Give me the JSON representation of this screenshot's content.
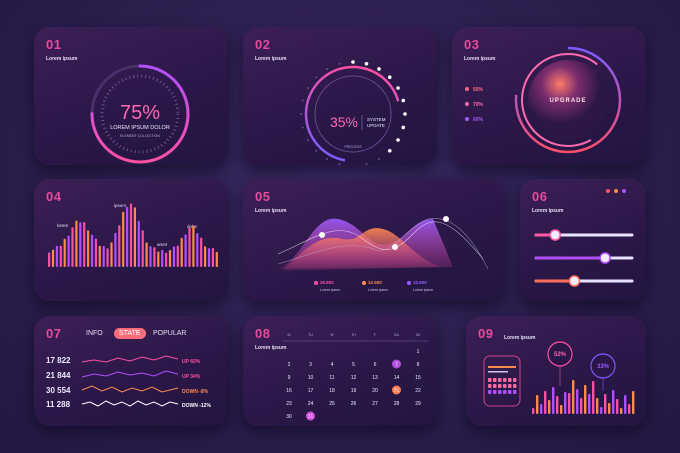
{
  "panels": [
    {
      "num": "01",
      "label": "Lorem ipsum"
    },
    {
      "num": "02",
      "label": "Lorem ipsum"
    },
    {
      "num": "03",
      "label": "Lorem ipsum"
    },
    {
      "num": "04"
    },
    {
      "num": "05",
      "label": "Lorem ipsum"
    },
    {
      "num": "06",
      "label": "Lorem ipsum"
    },
    {
      "num": "07"
    },
    {
      "num": "08",
      "label": "Lorem ipsum"
    },
    {
      "num": "09",
      "label": "Lorem ipsum"
    }
  ],
  "gauge1": {
    "value": "75%",
    "progress": 0.75,
    "title": "LOREM IPSUM DOLOR",
    "subtitle": "ELEMENT COLLECTION"
  },
  "gauge2": {
    "value": "35%",
    "progress": 0.35,
    "line1": "SYSTEM",
    "line2": "UPDATE",
    "caption": "PROCESS"
  },
  "upgrade": {
    "label": "UPGRADE",
    "items": [
      "50%",
      "70%",
      "60%"
    ],
    "colors": [
      "#ff6a7f",
      "#ff6ab0",
      "#a35cf0"
    ]
  },
  "bars4": {
    "labels": [
      "lorem",
      "ipsum",
      "amet",
      "dolor"
    ]
  },
  "wave5": {
    "legend": [
      {
        "value": "25.800",
        "text": "Lorem ipsum",
        "color": "#ff4fa3"
      },
      {
        "value": "12.500",
        "text": "Lorem ipsum",
        "color": "#ff8a4c"
      },
      {
        "value": "10.600",
        "text": "Lorem ipsum",
        "color": "#9b5cff"
      }
    ]
  },
  "sliders": {
    "levels": [
      0.2,
      0.72,
      0.4
    ],
    "colors": [
      "#ff5aa5",
      "#b04fff",
      "#ff6f5c"
    ]
  },
  "stats": {
    "tabs": [
      "INFO",
      "STATE",
      "POPULAR"
    ],
    "rows": [
      {
        "value": "17 822",
        "change": "UP 60%",
        "color": "#ff4fa3"
      },
      {
        "value": "21 844",
        "change": "UP 34%",
        "color": "#ff4fa3"
      },
      {
        "value": "30 554",
        "change": "DOWN -8%",
        "color": "#ff8a4c"
      },
      {
        "value": "11 288",
        "change": "DOWN -12%",
        "color": "#ffffff"
      }
    ]
  },
  "calendar": {
    "days": [
      "M",
      "TU",
      "W",
      "TH",
      "F",
      "SA",
      "SU"
    ],
    "dates": [
      "",
      "",
      "",
      "",
      "",
      "",
      1,
      2,
      3,
      4,
      5,
      6,
      7,
      8,
      9,
      10,
      11,
      12,
      13,
      14,
      15,
      16,
      17,
      18,
      19,
      20,
      21,
      22,
      23,
      24,
      25,
      26,
      27,
      28,
      29,
      30,
      31
    ],
    "highlights": {
      "7": "#b14fe0",
      "21": "#ff7a4c",
      "31": "#d44fe0"
    }
  },
  "p9": {
    "gauge1": "52%",
    "gauge2": "33%"
  }
}
